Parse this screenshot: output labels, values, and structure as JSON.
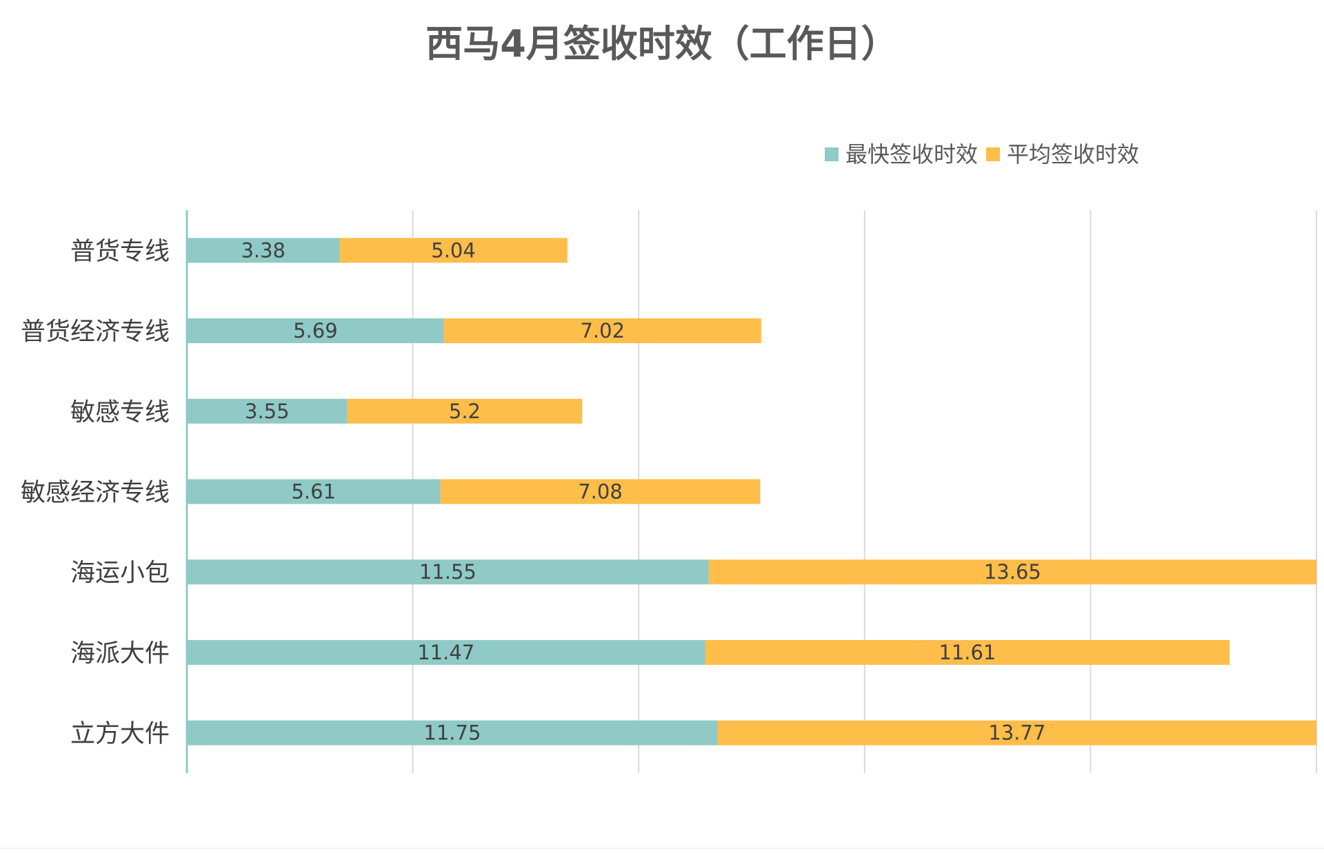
{
  "chart_data": {
    "type": "bar",
    "orientation": "horizontal",
    "stacked": true,
    "title": "西马4月签收时效（工作日）",
    "xlabel": "",
    "ylabel": "",
    "xlim": [
      0,
      25
    ],
    "grid": true,
    "legend_position": "top-right",
    "data_labels": true,
    "categories": [
      "普货专线",
      "普货经济专线",
      "敏感专线",
      "敏感经济专线",
      "海运小包",
      "海派大件",
      "立方大件"
    ],
    "series": [
      {
        "name": "最快签收时效",
        "color": "#8fcac6",
        "values": [
          3.38,
          5.69,
          3.55,
          5.61,
          11.55,
          11.47,
          11.75
        ]
      },
      {
        "name": "平均签收时效",
        "color": "#ffbd4a",
        "values": [
          5.04,
          7.02,
          5.2,
          7.08,
          13.65,
          11.61,
          13.77
        ]
      }
    ]
  }
}
